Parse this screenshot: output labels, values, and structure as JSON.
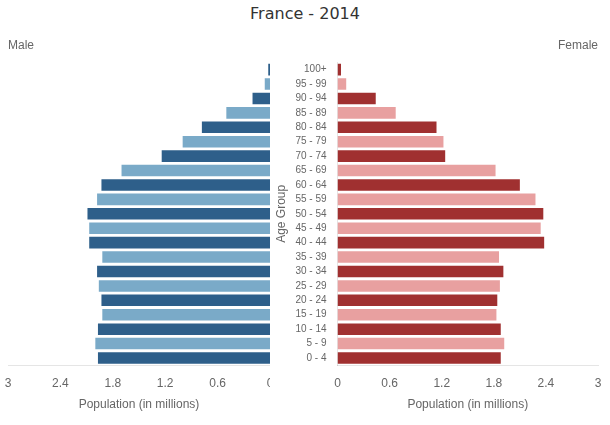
{
  "chart_data": {
    "type": "bar",
    "orientation": "horizontal",
    "title": "France - 2014",
    "xlabel": "Population (in millions)",
    "ylabel": "Age Group",
    "categories": [
      "0 - 4",
      "5 - 9",
      "10 - 14",
      "15 - 19",
      "20 - 24",
      "25 - 29",
      "30 - 34",
      "35 - 39",
      "40 - 44",
      "45 - 49",
      "50 - 54",
      "55 - 59",
      "60 - 64",
      "65 - 69",
      "70 - 74",
      "75 - 79",
      "80 - 84",
      "85 - 89",
      "90 - 94",
      "95 - 99",
      "100+"
    ],
    "series": [
      {
        "name": "Male",
        "values": [
          1.97,
          2.0,
          1.97,
          1.92,
          1.93,
          1.96,
          1.98,
          1.92,
          2.07,
          2.07,
          2.09,
          1.98,
          1.93,
          1.7,
          1.24,
          1.0,
          0.78,
          0.5,
          0.2,
          0.06,
          0.02
        ],
        "colors": [
          "#2e5f8a",
          "#7aaac8",
          "#2e5f8a",
          "#7aaac8",
          "#2e5f8a",
          "#7aaac8",
          "#2e5f8a",
          "#7aaac8",
          "#2e5f8a",
          "#7aaac8",
          "#2e5f8a",
          "#7aaac8",
          "#2e5f8a",
          "#7aaac8",
          "#2e5f8a",
          "#7aaac8",
          "#2e5f8a",
          "#7aaac8",
          "#2e5f8a",
          "#7aaac8",
          "#2e5f8a"
        ]
      },
      {
        "name": "Female",
        "values": [
          1.88,
          1.92,
          1.88,
          1.83,
          1.84,
          1.87,
          1.91,
          1.86,
          2.38,
          2.34,
          2.37,
          2.28,
          2.1,
          1.82,
          1.24,
          1.22,
          1.14,
          0.67,
          0.44,
          0.1,
          0.04
        ],
        "colors": [
          "#a03030",
          "#e8a0a0",
          "#a03030",
          "#e8a0a0",
          "#a03030",
          "#e8a0a0",
          "#a03030",
          "#e8a0a0",
          "#a03030",
          "#e8a0a0",
          "#a03030",
          "#e8a0a0",
          "#a03030",
          "#e8a0a0",
          "#a03030",
          "#e8a0a0",
          "#a03030",
          "#e8a0a0",
          "#a03030",
          "#e8a0a0",
          "#a03030"
        ]
      }
    ],
    "xlim": [
      0,
      3
    ],
    "xticks": [
      0,
      0.6,
      1.2,
      1.8,
      2.4,
      3
    ],
    "grid": false
  }
}
